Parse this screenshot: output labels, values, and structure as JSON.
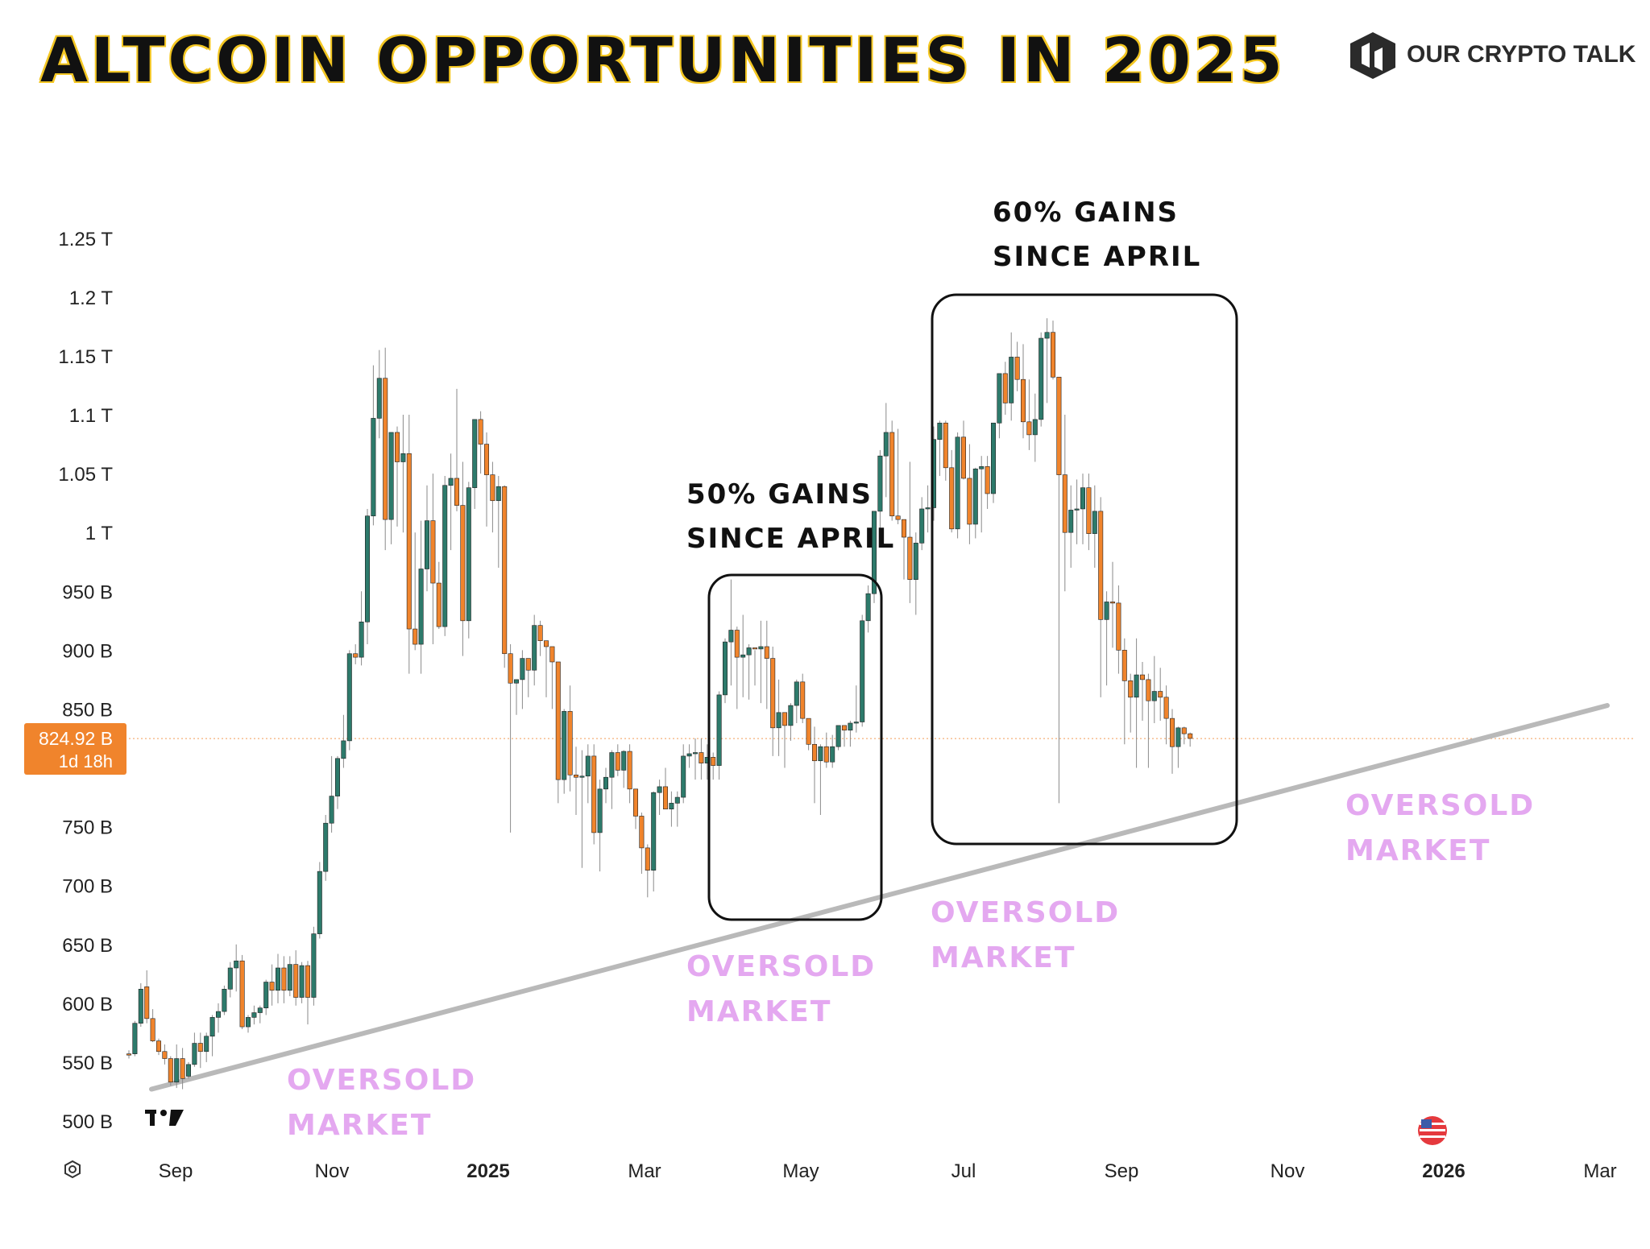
{
  "header": {
    "title": "ALTCOIN OPPORTUNITIES IN 2025",
    "brand_name": "OUR CRYPTO TALK",
    "brand_icon": "our-crypto-talk-logo-icon"
  },
  "colors": {
    "up": "#2d7a6b",
    "down": "#f0842c",
    "price_tag": "#f0842c",
    "trendline": "#b9b9b9",
    "annotation_oversold": "#e4a8f0",
    "title_outline": "#f3c623"
  },
  "chart_data": {
    "type": "candlestick",
    "y_ticks": [
      "1.25 T",
      "1.2 T",
      "1.15 T",
      "1.1 T",
      "1.05 T",
      "1 T",
      "950 B",
      "900 B",
      "850 B",
      "750 B",
      "700 B",
      "650 B",
      "600 B",
      "550 B",
      "500 B"
    ],
    "x_ticks": [
      {
        "label": "Sep",
        "bold": false
      },
      {
        "label": "Nov",
        "bold": false
      },
      {
        "label": "2025",
        "bold": true
      },
      {
        "label": "Mar",
        "bold": false
      },
      {
        "label": "May",
        "bold": false
      },
      {
        "label": "Jul",
        "bold": false
      },
      {
        "label": "Sep",
        "bold": false
      },
      {
        "label": "Nov",
        "bold": false
      },
      {
        "label": "2026",
        "bold": true
      },
      {
        "label": "Mar",
        "bold": false
      }
    ],
    "ylim_billions": [
      480,
      1270
    ],
    "x_range": [
      "2024-08",
      "2026-03"
    ],
    "unit": "USD market cap (billions)",
    "current_price_label": "824.92 B",
    "countdown_label": "1d 18h",
    "current_price_billions": 824.92,
    "candles_billions": [
      [
        557,
        560,
        553,
        556
      ],
      [
        557,
        585,
        555,
        583
      ],
      [
        583,
        617,
        580,
        612
      ],
      [
        614,
        628,
        583,
        587
      ],
      [
        587,
        595,
        567,
        568
      ],
      [
        568,
        570,
        556,
        559
      ],
      [
        559,
        565,
        548,
        553
      ],
      [
        553,
        555,
        530,
        533
      ],
      [
        533,
        565,
        528,
        553
      ],
      [
        553,
        562,
        527,
        536
      ],
      [
        538,
        550,
        536,
        548
      ],
      [
        548,
        575,
        546,
        566
      ],
      [
        566,
        575,
        545,
        559
      ],
      [
        559,
        575,
        550,
        572
      ],
      [
        572,
        590,
        555,
        588
      ],
      [
        588,
        600,
        575,
        593
      ],
      [
        593,
        615,
        590,
        612
      ],
      [
        612,
        635,
        605,
        630
      ],
      [
        630,
        650,
        610,
        636
      ],
      [
        636,
        641,
        578,
        580
      ],
      [
        580,
        590,
        575,
        588
      ],
      [
        588,
        598,
        582,
        592
      ],
      [
        592,
        598,
        583,
        596
      ],
      [
        596,
        620,
        590,
        618
      ],
      [
        618,
        633,
        598,
        611
      ],
      [
        611,
        642,
        600,
        630
      ],
      [
        630,
        640,
        600,
        611
      ],
      [
        611,
        640,
        606,
        633
      ],
      [
        633,
        645,
        598,
        605
      ],
      [
        605,
        635,
        600,
        632
      ],
      [
        632,
        636,
        582,
        605
      ],
      [
        605,
        665,
        598,
        659
      ],
      [
        659,
        720,
        655,
        712
      ],
      [
        712,
        760,
        704,
        753
      ],
      [
        753,
        810,
        745,
        776
      ],
      [
        776,
        810,
        765,
        808
      ],
      [
        808,
        845,
        800,
        823
      ],
      [
        823,
        900,
        815,
        897
      ],
      [
        897,
        905,
        888,
        894
      ],
      [
        894,
        950,
        887,
        924
      ],
      [
        924,
        1020,
        905,
        1014
      ],
      [
        1014,
        1142,
        1006,
        1097
      ],
      [
        1097,
        1155,
        1080,
        1131
      ],
      [
        1131,
        1157,
        985,
        1011
      ],
      [
        1011,
        1085,
        990,
        1085
      ],
      [
        1085,
        1090,
        1005,
        1060
      ],
      [
        1060,
        1100,
        1000,
        1067
      ],
      [
        1067,
        1100,
        880,
        918
      ],
      [
        918,
        1000,
        900,
        905
      ],
      [
        905,
        1010,
        880,
        969
      ],
      [
        969,
        1040,
        950,
        1010
      ],
      [
        1010,
        1050,
        905,
        957
      ],
      [
        957,
        975,
        918,
        920
      ],
      [
        920,
        1048,
        912,
        1040
      ],
      [
        1040,
        1067,
        985,
        1046
      ],
      [
        1046,
        1122,
        1018,
        1023
      ],
      [
        1023,
        1060,
        895,
        925
      ],
      [
        925,
        1043,
        910,
        1038
      ],
      [
        1038,
        1093,
        1020,
        1096
      ],
      [
        1096,
        1103,
        1050,
        1075
      ],
      [
        1075,
        1085,
        1005,
        1049
      ],
      [
        1049,
        1060,
        1000,
        1027
      ],
      [
        1027,
        1048,
        970,
        1039
      ],
      [
        1039,
        1040,
        885,
        897
      ],
      [
        897,
        905,
        745,
        872
      ],
      [
        872,
        875,
        845,
        875
      ],
      [
        875,
        900,
        850,
        893
      ],
      [
        893,
        890,
        860,
        883
      ],
      [
        883,
        930,
        870,
        921
      ],
      [
        921,
        925,
        895,
        908
      ],
      [
        908,
        907,
        860,
        903
      ],
      [
        903,
        890,
        850,
        890
      ],
      [
        890,
        880,
        770,
        790
      ],
      [
        790,
        850,
        778,
        848
      ],
      [
        848,
        870,
        780,
        794
      ],
      [
        794,
        818,
        760,
        792
      ],
      [
        792,
        815,
        715,
        793
      ],
      [
        793,
        820,
        770,
        810
      ],
      [
        810,
        820,
        735,
        745
      ],
      [
        745,
        790,
        712,
        782
      ],
      [
        782,
        800,
        770,
        792
      ],
      [
        792,
        815,
        765,
        813
      ],
      [
        813,
        820,
        793,
        798
      ],
      [
        798,
        815,
        783,
        814
      ],
      [
        814,
        820,
        770,
        782
      ],
      [
        782,
        770,
        748,
        759
      ],
      [
        759,
        762,
        710,
        732
      ],
      [
        732,
        735,
        690,
        713
      ],
      [
        713,
        780,
        695,
        779
      ],
      [
        779,
        790,
        760,
        784
      ],
      [
        784,
        800,
        765,
        765
      ],
      [
        765,
        780,
        750,
        770
      ],
      [
        770,
        780,
        750,
        775
      ],
      [
        775,
        820,
        770,
        810
      ],
      [
        810,
        820,
        800,
        812
      ],
      [
        812,
        825,
        790,
        813
      ],
      [
        813,
        825,
        790,
        804
      ],
      [
        804,
        820,
        790,
        809
      ],
      [
        809,
        813,
        790,
        802
      ],
      [
        802,
        865,
        790,
        862
      ],
      [
        862,
        910,
        855,
        907
      ],
      [
        907,
        960,
        870,
        917
      ],
      [
        917,
        920,
        850,
        894
      ],
      [
        894,
        930,
        860,
        896
      ],
      [
        896,
        905,
        858,
        902
      ],
      [
        902,
        900,
        870,
        901
      ],
      [
        901,
        925,
        855,
        903
      ],
      [
        903,
        925,
        850,
        893
      ],
      [
        893,
        903,
        810,
        834
      ],
      [
        834,
        875,
        810,
        847
      ],
      [
        847,
        845,
        800,
        836
      ],
      [
        836,
        855,
        823,
        853
      ],
      [
        853,
        875,
        838,
        873
      ],
      [
        873,
        880,
        838,
        842
      ],
      [
        842,
        840,
        815,
        820
      ],
      [
        820,
        835,
        770,
        806
      ],
      [
        806,
        820,
        760,
        818
      ],
      [
        818,
        830,
        800,
        805
      ],
      [
        805,
        828,
        800,
        818
      ],
      [
        818,
        835,
        815,
        836
      ],
      [
        836,
        835,
        818,
        832
      ],
      [
        832,
        840,
        818,
        838
      ],
      [
        838,
        870,
        830,
        839
      ],
      [
        839,
        930,
        835,
        925
      ],
      [
        925,
        955,
        915,
        948
      ],
      [
        948,
        1000,
        940,
        1018
      ],
      [
        1018,
        1070,
        1000,
        1065
      ],
      [
        1065,
        1110,
        1030,
        1085
      ],
      [
        1085,
        1095,
        1010,
        1014
      ],
      [
        1014,
        1088,
        1007,
        1011
      ],
      [
        1011,
        1010,
        960,
        996
      ],
      [
        996,
        1060,
        940,
        960
      ],
      [
        960,
        1000,
        930,
        991
      ],
      [
        991,
        1030,
        985,
        1020
      ],
      [
        1020,
        1040,
        1000,
        1021
      ],
      [
        1021,
        1090,
        1010,
        1079
      ],
      [
        1079,
        1095,
        1048,
        1093
      ],
      [
        1093,
        1095,
        1044,
        1055
      ],
      [
        1055,
        1070,
        1000,
        1003
      ],
      [
        1003,
        1085,
        995,
        1081
      ],
      [
        1081,
        1095,
        1045,
        1046
      ],
      [
        1046,
        1075,
        990,
        1007
      ],
      [
        1007,
        1055,
        995,
        1054
      ],
      [
        1054,
        1065,
        1000,
        1056
      ],
      [
        1056,
        1065,
        1020,
        1033
      ],
      [
        1033,
        1080,
        1025,
        1093
      ],
      [
        1093,
        1115,
        1080,
        1135
      ],
      [
        1135,
        1145,
        1100,
        1110
      ],
      [
        1110,
        1170,
        1095,
        1149
      ],
      [
        1149,
        1162,
        1120,
        1130
      ],
      [
        1130,
        1160,
        1080,
        1094
      ],
      [
        1094,
        1130,
        1070,
        1083
      ],
      [
        1083,
        1118,
        1060,
        1096
      ],
      [
        1096,
        1170,
        1090,
        1165
      ],
      [
        1165,
        1182,
        1110,
        1170
      ],
      [
        1170,
        1180,
        1130,
        1132
      ],
      [
        1132,
        1125,
        770,
        1049
      ],
      [
        1049,
        1100,
        950,
        1000
      ],
      [
        1000,
        1040,
        970,
        1019
      ],
      [
        1019,
        1045,
        990,
        1020
      ],
      [
        1020,
        1050,
        990,
        1038
      ],
      [
        1038,
        1050,
        985,
        999
      ],
      [
        999,
        1040,
        970,
        1018
      ],
      [
        1018,
        1030,
        860,
        926
      ],
      [
        926,
        950,
        870,
        941
      ],
      [
        941,
        975,
        902,
        940
      ],
      [
        940,
        955,
        880,
        900
      ],
      [
        900,
        910,
        820,
        874
      ],
      [
        874,
        880,
        830,
        860
      ],
      [
        860,
        910,
        800,
        879
      ],
      [
        879,
        890,
        840,
        875
      ],
      [
        875,
        880,
        800,
        857
      ],
      [
        857,
        895,
        838,
        865
      ],
      [
        865,
        885,
        840,
        860
      ],
      [
        860,
        870,
        820,
        842
      ],
      [
        842,
        850,
        795,
        818
      ],
      [
        818,
        835,
        800,
        834
      ],
      [
        834,
        835,
        820,
        829
      ],
      [
        829,
        830,
        818,
        825
      ]
    ],
    "trendline_billions": [
      {
        "at": "2024-08-29",
        "value": 527
      },
      {
        "at": "2026-02-18",
        "value": 853
      }
    ],
    "annotations": {
      "box1_line1": "50% GAINS",
      "box1_line2": "SINCE APRIL",
      "box2_line1": "60% GAINS",
      "box2_line2": "SINCE APRIL",
      "oversold_line1": "OVERSOLD",
      "oversold_line2": "MARKET"
    }
  }
}
